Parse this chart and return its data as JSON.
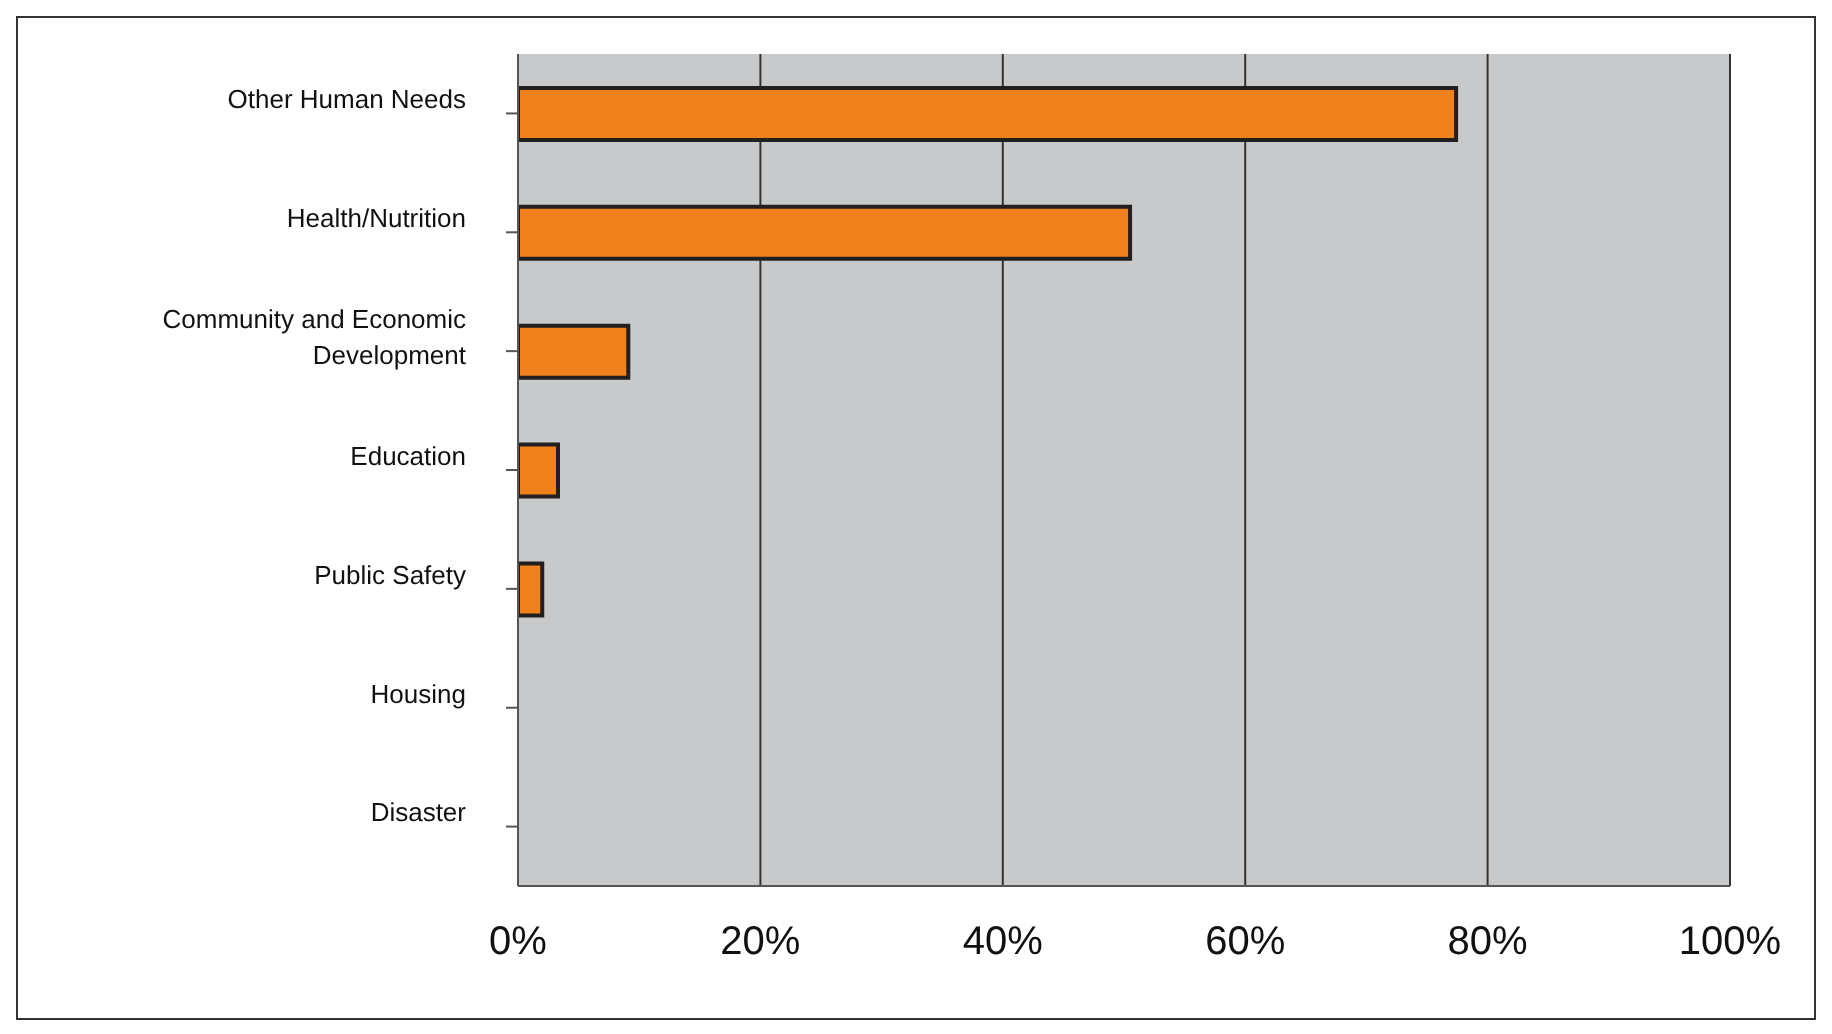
{
  "chart_data": {
    "type": "bar",
    "orientation": "horizontal",
    "categories": [
      "Other Human Needs",
      "Health/Nutrition",
      "Community and Economic Development",
      "Education",
      "Public Safety",
      "Housing",
      "Disaster"
    ],
    "values": [
      77.4,
      50.5,
      9.1,
      3.3,
      2.0,
      0,
      0
    ],
    "color": "#f0821e",
    "xlim": [
      0,
      100
    ],
    "xticks": [
      {
        "value": 0,
        "label": "0%"
      },
      {
        "value": 20,
        "label": "20%"
      },
      {
        "value": 40,
        "label": "40%"
      },
      {
        "value": 60,
        "label": "60%"
      },
      {
        "value": 80,
        "label": "80%"
      },
      {
        "value": 100,
        "label": "100%"
      }
    ],
    "grid": "x",
    "legend": false
  }
}
